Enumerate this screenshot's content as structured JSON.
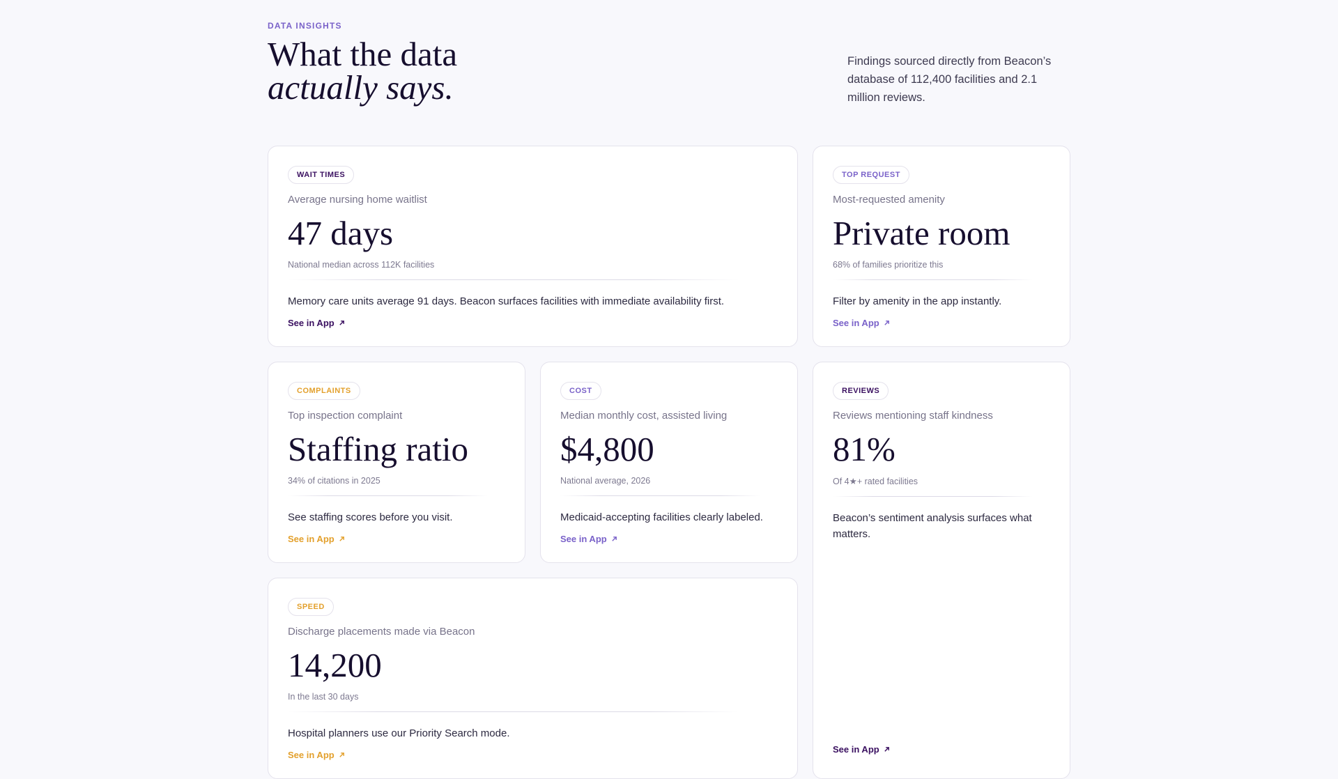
{
  "header": {
    "eyebrow": "DATA INSIGHTS",
    "title_line1": "What the data",
    "title_line2": "actually says.",
    "description": "Findings sourced directly from Beacon’s database of 112,400 facilities and 2.1 million reviews."
  },
  "cards": [
    {
      "tag": "WAIT TIMES",
      "label": "Average nursing home waitlist",
      "value": "47 days",
      "note": "National median across 112K facilities",
      "description": "Memory care units average 91 days. Beacon surfaces facilities with immediate availability first.",
      "link": "See in App"
    },
    {
      "tag": "TOP REQUEST",
      "label": "Most-requested amenity",
      "value": "Private room",
      "note": "68% of families prioritize this",
      "description": "Filter by amenity in the app instantly.",
      "link": "See in App"
    },
    {
      "tag": "COMPLAINTS",
      "label": "Top inspection complaint",
      "value": "Staffing ratio",
      "note": "34% of citations in 2025",
      "description": "See staffing scores before you visit.",
      "link": "See in App"
    },
    {
      "tag": "COST",
      "label": "Median monthly cost, assisted living",
      "value": "$4,800",
      "note": "National average, 2026",
      "description": "Medicaid-accepting facilities clearly labeled.",
      "link": "See in App"
    },
    {
      "tag": "REVIEWS",
      "label": "Reviews mentioning staff kindness",
      "value": "81%",
      "note": "Of 4★+ rated facilities",
      "description": "Beacon’s sentiment analysis surfaces what matters.",
      "link": "See in App"
    },
    {
      "tag": "SPEED",
      "label": "Discharge placements made via Beacon",
      "value": "14,200",
      "note": "In the last 30 days",
      "description": "Hospital planners use our Priority Search mode.",
      "link": "See in App"
    }
  ]
}
